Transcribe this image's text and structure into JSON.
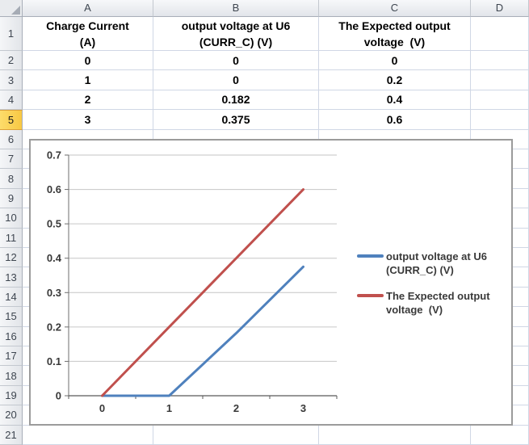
{
  "sheet": {
    "column_headers": [
      "A",
      "B",
      "C",
      "D"
    ],
    "row_headers": [
      "1",
      "2",
      "3",
      "4",
      "5",
      "6",
      "7",
      "8",
      "9",
      "10",
      "11",
      "12",
      "13",
      "14",
      "15",
      "16",
      "17",
      "18",
      "19",
      "20",
      "21"
    ],
    "selected_row_header": "5",
    "rows": [
      {
        "r": "1",
        "cells": [
          "Charge Current\n(A)",
          "output voltage at U6\n(CURR_C) (V)",
          "The Expected output\nvoltage  (V)",
          ""
        ]
      },
      {
        "r": "2",
        "cells": [
          "0",
          "0",
          "0",
          ""
        ]
      },
      {
        "r": "3",
        "cells": [
          "1",
          "0",
          "0.2",
          ""
        ]
      },
      {
        "r": "4",
        "cells": [
          "2",
          "0.182",
          "0.4",
          ""
        ]
      },
      {
        "r": "5",
        "cells": [
          "3",
          "0.375",
          "0.6",
          ""
        ]
      }
    ]
  },
  "chart_data": {
    "type": "line",
    "title": "",
    "xlabel": "",
    "ylabel": "",
    "categories": [
      "0",
      "1",
      "2",
      "3"
    ],
    "x_values": [
      0,
      1,
      2,
      3
    ],
    "series": [
      {
        "name": "output voltage at U6 (CURR_C) (V)",
        "legend_lines": "output voltage at U6\n(CURR_C) (V)",
        "values": [
          0,
          0,
          0.182,
          0.375
        ],
        "color": "#4F81BD"
      },
      {
        "name": "The Expected output voltage  (V)",
        "legend_lines": "The Expected output\nvoltage  (V)",
        "values": [
          0,
          0.2,
          0.4,
          0.6
        ],
        "color": "#C0504D"
      }
    ],
    "ylim": [
      0,
      0.7
    ],
    "ytick_step": 0.1,
    "ytick_labels": [
      "0",
      "0.1",
      "0.2",
      "0.3",
      "0.4",
      "0.5",
      "0.6",
      "0.7"
    ],
    "grid": true,
    "legend_position": "right"
  },
  "colors": {
    "series_blue": "#4F81BD",
    "series_red": "#C0504D",
    "selected_row_fill": "#FBD158",
    "sheet_gridline": "#D0D7E5",
    "chart_gridline": "#C6C6C6",
    "axis": "#6E6E6E"
  }
}
